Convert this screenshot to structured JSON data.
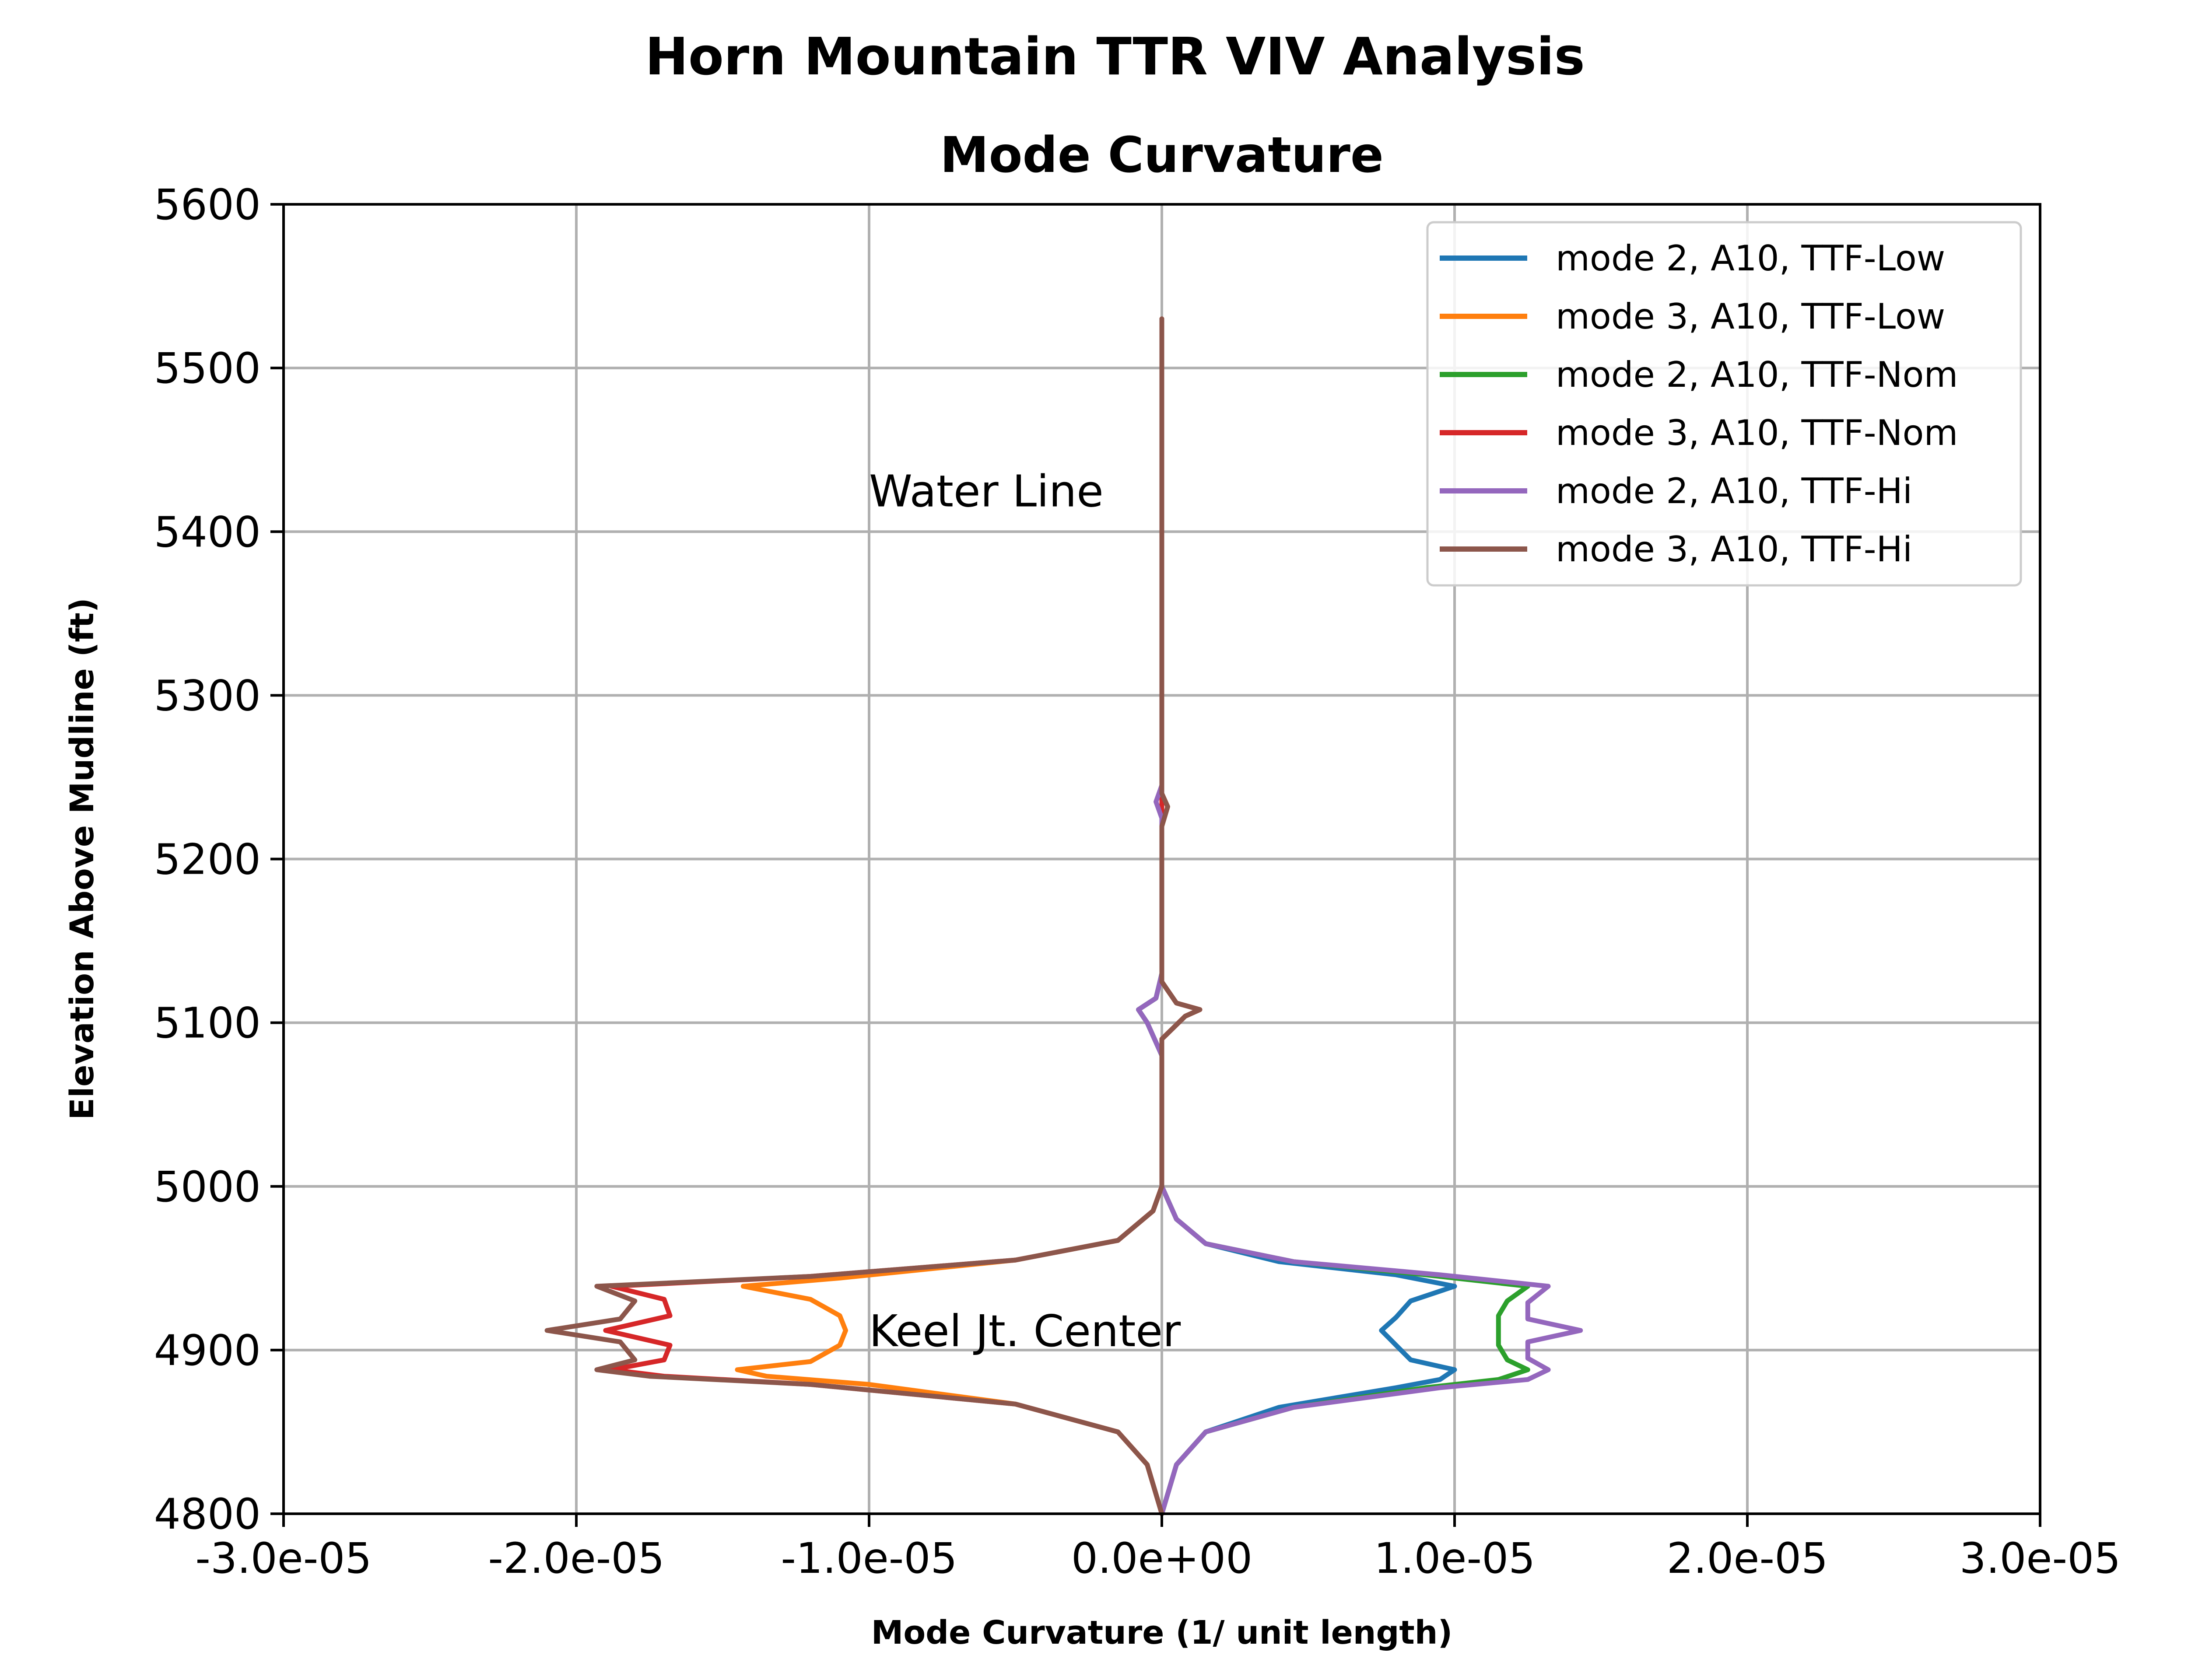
{
  "chart_data": {
    "type": "line",
    "suptitle": "Horn Mountain TTR VIV Analysis",
    "title": "Mode Curvature",
    "xlabel": "Mode Curvature (1/ unit length)",
    "ylabel": "Elevation Above Mudline (ft)",
    "xlim": [
      -3e-05,
      3e-05
    ],
    "ylim": [
      4800,
      5600
    ],
    "xticks": [
      -3e-05,
      -2e-05,
      -1e-05,
      0.0,
      1e-05,
      2e-05,
      3e-05
    ],
    "xtick_labels": [
      "-3.0e-05",
      "-2.0e-05",
      "-1.0e-05",
      "0.0e+00",
      "1.0e-05",
      "2.0e-05",
      "3.0e-05"
    ],
    "yticks": [
      4800,
      4900,
      5000,
      5100,
      5200,
      5300,
      5400,
      5500,
      5600
    ],
    "ytick_labels": [
      "4800",
      "4900",
      "5000",
      "5100",
      "5200",
      "5300",
      "5400",
      "5500",
      "5600"
    ],
    "grid": true,
    "legend_position": "top-right",
    "annotations": [
      {
        "text": "Water Line",
        "x": -1e-05,
        "y": 5425
      },
      {
        "text": "Keel Jt. Center",
        "x": -1e-05,
        "y": 4912
      }
    ],
    "series": [
      {
        "name": "mode 2, A10, TTF-Low",
        "color": "#1f77b4",
        "points": [
          [
            0.0,
            4800
          ],
          [
            5e-07,
            4830
          ],
          [
            1.5e-06,
            4850
          ],
          [
            4e-06,
            4865
          ],
          [
            8e-06,
            4877
          ],
          [
            9.5e-06,
            4882
          ],
          [
            1e-05,
            4888
          ],
          [
            8.5e-06,
            4894
          ],
          [
            8e-06,
            4903
          ],
          [
            7.5e-06,
            4912
          ],
          [
            8e-06,
            4920
          ],
          [
            8.5e-06,
            4930
          ],
          [
            1e-05,
            4939
          ],
          [
            8e-06,
            4946
          ],
          [
            4e-06,
            4954
          ],
          [
            1.5e-06,
            4965
          ],
          [
            5e-07,
            4980
          ],
          [
            0.0,
            5000
          ],
          [
            0.0,
            5080
          ],
          [
            -5e-07,
            5100
          ],
          [
            -8e-07,
            5108
          ],
          [
            -2e-07,
            5115
          ],
          [
            0.0,
            5130
          ],
          [
            0.0,
            5230
          ],
          [
            0.0,
            5300
          ],
          [
            0.0,
            5420
          ]
        ]
      },
      {
        "name": "mode 3, A10, TTF-Low",
        "color": "#ff7f0e",
        "points": [
          [
            0.0,
            4800
          ],
          [
            -5e-07,
            4830
          ],
          [
            -1.5e-06,
            4850
          ],
          [
            -5e-06,
            4867
          ],
          [
            -1e-05,
            4879
          ],
          [
            -1.35e-05,
            4884
          ],
          [
            -1.45e-05,
            4888
          ],
          [
            -1.2e-05,
            4893
          ],
          [
            -1.1e-05,
            4903
          ],
          [
            -1.08e-05,
            4912
          ],
          [
            -1.1e-05,
            4921
          ],
          [
            -1.2e-05,
            4931
          ],
          [
            -1.43e-05,
            4939
          ],
          [
            -1.1e-05,
            4944
          ],
          [
            -5e-06,
            4955
          ],
          [
            -1.5e-06,
            4967
          ],
          [
            -3e-07,
            4985
          ],
          [
            0.0,
            5000
          ],
          [
            0.0,
            5090
          ],
          [
            8e-07,
            5104
          ],
          [
            1.3e-06,
            5108
          ],
          [
            5e-07,
            5112
          ],
          [
            0.0,
            5125
          ],
          [
            0.0,
            5220
          ],
          [
            2e-07,
            5232
          ],
          [
            0.0,
            5240
          ],
          [
            0.0,
            5420
          ],
          [
            0.0,
            5530
          ]
        ]
      },
      {
        "name": "mode 2, A10, TTF-Nom",
        "color": "#2ca02c",
        "points": [
          [
            0.0,
            4800
          ],
          [
            5e-07,
            4830
          ],
          [
            1.5e-06,
            4850
          ],
          [
            4.5e-06,
            4865
          ],
          [
            9e-06,
            4877
          ],
          [
            1.15e-05,
            4882
          ],
          [
            1.25e-05,
            4888
          ],
          [
            1.18e-05,
            4894
          ],
          [
            1.15e-05,
            4903
          ],
          [
            1.15e-05,
            4912
          ],
          [
            1.15e-05,
            4921
          ],
          [
            1.18e-05,
            4930
          ],
          [
            1.25e-05,
            4939
          ],
          [
            9e-06,
            4946
          ],
          [
            4.5e-06,
            4954
          ],
          [
            1.5e-06,
            4965
          ],
          [
            5e-07,
            4980
          ],
          [
            0.0,
            5000
          ],
          [
            0.0,
            5080
          ],
          [
            -5e-07,
            5100
          ],
          [
            -8e-07,
            5108
          ],
          [
            -2e-07,
            5115
          ],
          [
            0.0,
            5130
          ],
          [
            0.0,
            5420
          ]
        ]
      },
      {
        "name": "mode 3, A10, TTF-Nom",
        "color": "#d62728",
        "points": [
          [
            0.0,
            4800
          ],
          [
            -5e-07,
            4830
          ],
          [
            -1.5e-06,
            4850
          ],
          [
            -5e-06,
            4867
          ],
          [
            -1.2e-05,
            4879
          ],
          [
            -1.7e-05,
            4884
          ],
          [
            -1.88e-05,
            4888
          ],
          [
            -1.7e-05,
            4894
          ],
          [
            -1.68e-05,
            4903
          ],
          [
            -1.9e-05,
            4912
          ],
          [
            -1.68e-05,
            4921
          ],
          [
            -1.7e-05,
            4931
          ],
          [
            -1.88e-05,
            4939
          ],
          [
            -1.2e-05,
            4945
          ],
          [
            -5e-06,
            4955
          ],
          [
            -1.5e-06,
            4967
          ],
          [
            -3e-07,
            4985
          ],
          [
            0.0,
            5000
          ],
          [
            0.0,
            5090
          ],
          [
            8e-07,
            5104
          ],
          [
            1.3e-06,
            5108
          ],
          [
            5e-07,
            5112
          ],
          [
            0.0,
            5125
          ],
          [
            0.0,
            5530
          ]
        ]
      },
      {
        "name": "mode 2, A10, TTF-Hi",
        "color": "#9467bd",
        "points": [
          [
            0.0,
            4800
          ],
          [
            5e-07,
            4830
          ],
          [
            1.5e-06,
            4850
          ],
          [
            4.5e-06,
            4865
          ],
          [
            9.5e-06,
            4877
          ],
          [
            1.25e-05,
            4882
          ],
          [
            1.32e-05,
            4888
          ],
          [
            1.25e-05,
            4895
          ],
          [
            1.25e-05,
            4905
          ],
          [
            1.43e-05,
            4912
          ],
          [
            1.25e-05,
            4919
          ],
          [
            1.25e-05,
            4929
          ],
          [
            1.32e-05,
            4939
          ],
          [
            9.5e-06,
            4946
          ],
          [
            4.5e-06,
            4954
          ],
          [
            1.5e-06,
            4965
          ],
          [
            5e-07,
            4980
          ],
          [
            0.0,
            5000
          ],
          [
            0.0,
            5080
          ],
          [
            -5e-07,
            5100
          ],
          [
            -8e-07,
            5108
          ],
          [
            -2e-07,
            5115
          ],
          [
            0.0,
            5130
          ],
          [
            0.0,
            5225
          ],
          [
            -2e-07,
            5235
          ],
          [
            0.0,
            5245
          ],
          [
            0.0,
            5420
          ]
        ]
      },
      {
        "name": "mode 3, A10, TTF-Hi",
        "color": "#8c564b",
        "points": [
          [
            0.0,
            4800
          ],
          [
            -5e-07,
            4830
          ],
          [
            -1.5e-06,
            4850
          ],
          [
            -5e-06,
            4867
          ],
          [
            -1.2e-05,
            4879
          ],
          [
            -1.75e-05,
            4884
          ],
          [
            -1.93e-05,
            4888
          ],
          [
            -1.8e-05,
            4894
          ],
          [
            -1.85e-05,
            4905
          ],
          [
            -2.1e-05,
            4912
          ],
          [
            -1.85e-05,
            4919
          ],
          [
            -1.8e-05,
            4930
          ],
          [
            -1.93e-05,
            4939
          ],
          [
            -1.2e-05,
            4945
          ],
          [
            -5e-06,
            4955
          ],
          [
            -1.5e-06,
            4967
          ],
          [
            -3e-07,
            4985
          ],
          [
            0.0,
            5000
          ],
          [
            0.0,
            5090
          ],
          [
            8e-07,
            5104
          ],
          [
            1.3e-06,
            5108
          ],
          [
            5e-07,
            5112
          ],
          [
            0.0,
            5125
          ],
          [
            0.0,
            5220
          ],
          [
            2e-07,
            5232
          ],
          [
            0.0,
            5240
          ],
          [
            0.0,
            5530
          ]
        ]
      }
    ]
  }
}
